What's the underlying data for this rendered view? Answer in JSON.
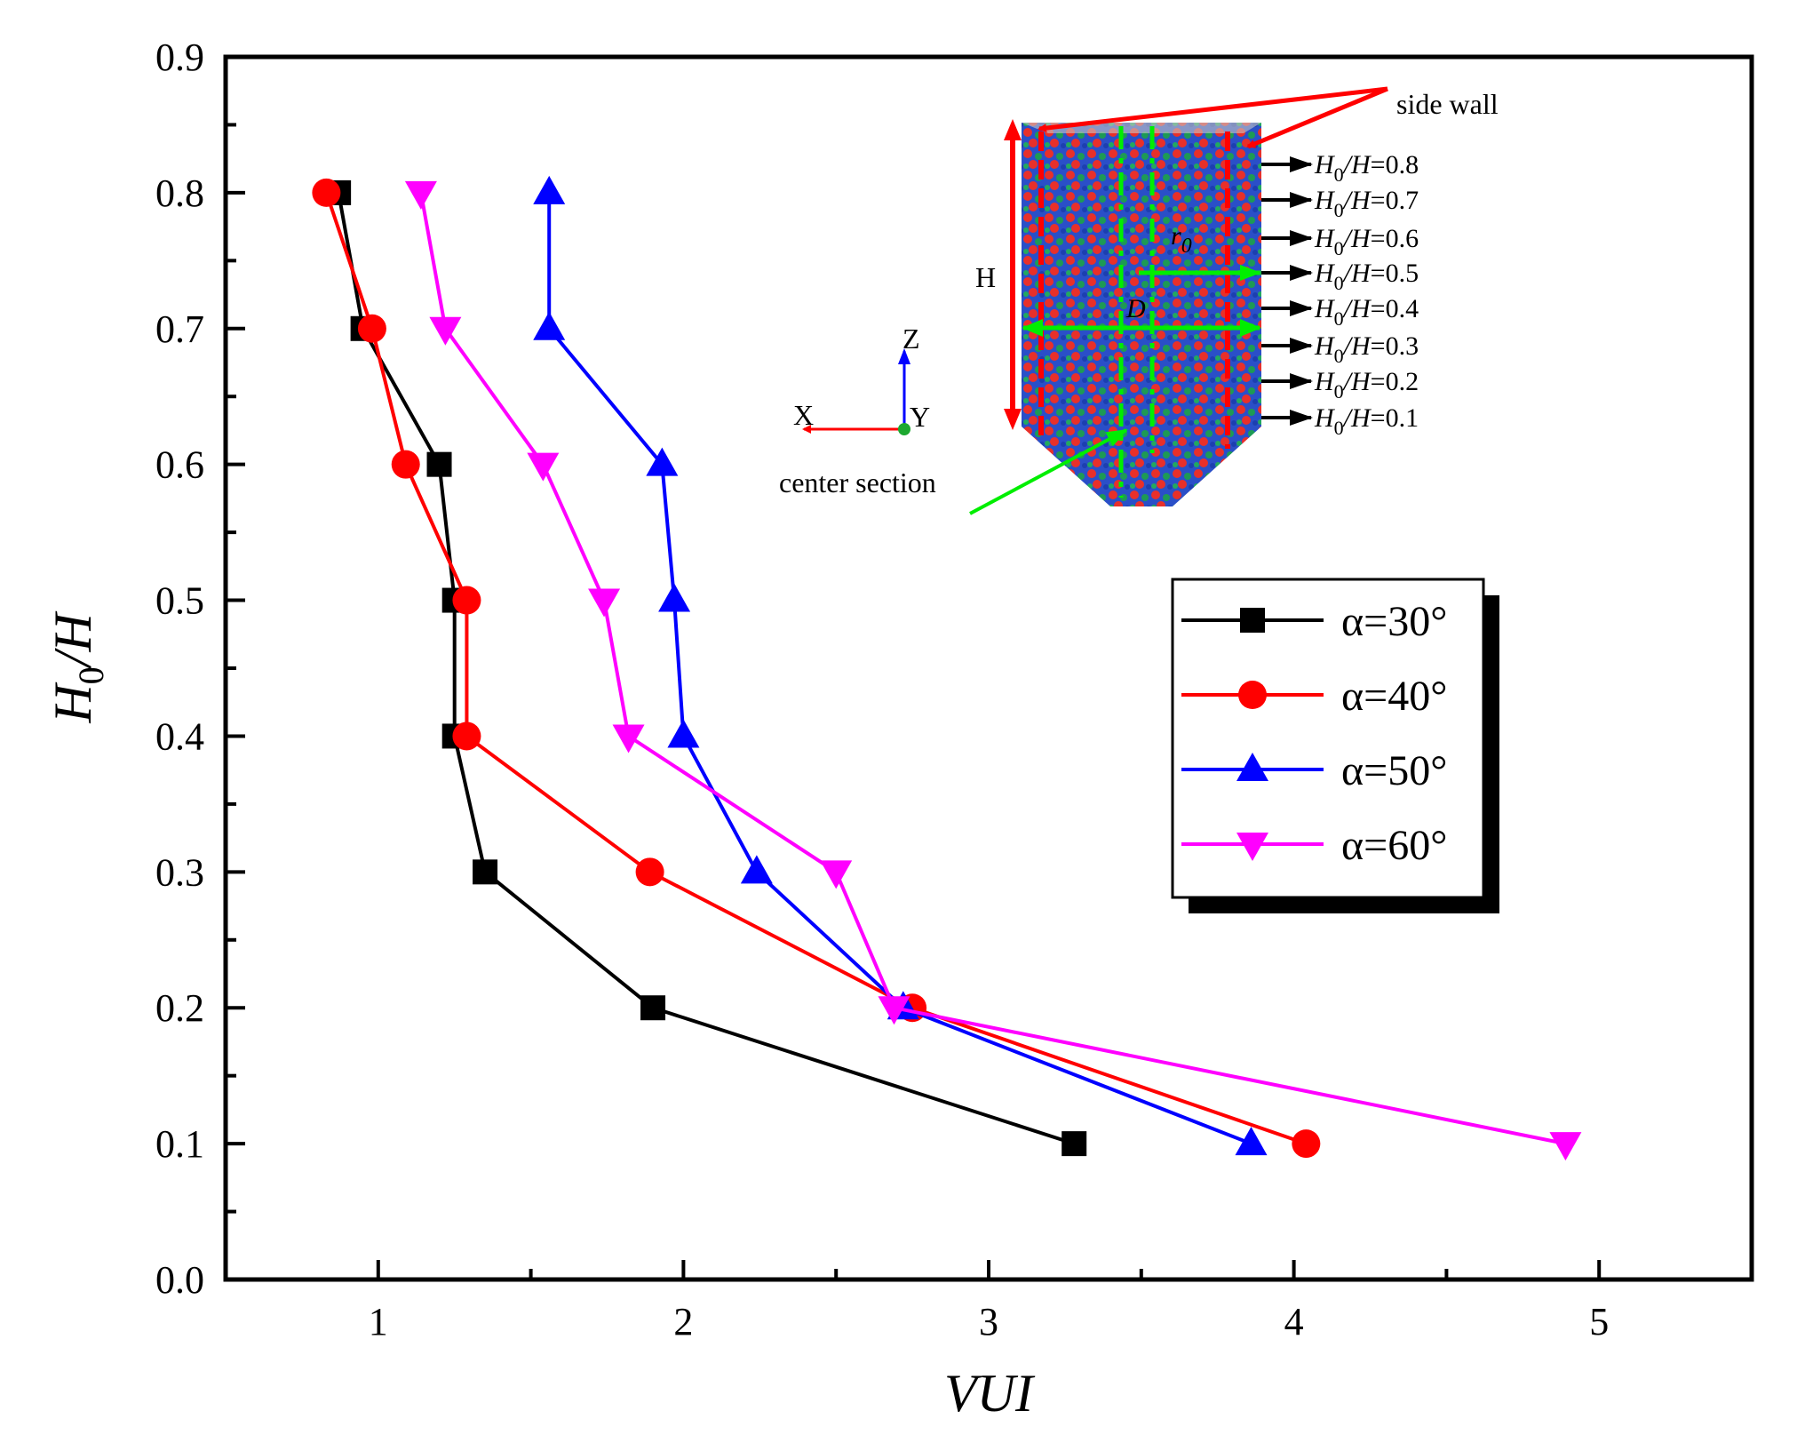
{
  "chart_data": {
    "type": "line",
    "title": "",
    "xlabel": "VUI",
    "ylabel": "H0/H",
    "ylabel_main": "H",
    "ylabel_sub": "0",
    "ylabel_tail": "/H",
    "xlim": [
      0.5,
      5.5
    ],
    "ylim": [
      0.0,
      0.9
    ],
    "xticks": [
      "1",
      "2",
      "3",
      "4",
      "5"
    ],
    "xtick_values": [
      1,
      2,
      3,
      4,
      5
    ],
    "yticks": [
      "0.0",
      "0.1",
      "0.2",
      "0.3",
      "0.4",
      "0.5",
      "0.6",
      "0.7",
      "0.8",
      "0.9"
    ],
    "ytick_values": [
      0.0,
      0.1,
      0.2,
      0.3,
      0.4,
      0.5,
      0.6,
      0.7,
      0.8,
      0.9
    ],
    "legend_position": "right-middle",
    "series": [
      {
        "name": "α=30°",
        "color": "#000000",
        "marker": "square",
        "points": [
          [
            0.87,
            0.8
          ],
          [
            0.95,
            0.7
          ],
          [
            1.2,
            0.6
          ],
          [
            1.25,
            0.5
          ],
          [
            1.25,
            0.4
          ],
          [
            1.35,
            0.3
          ],
          [
            1.9,
            0.2
          ],
          [
            3.28,
            0.1
          ]
        ]
      },
      {
        "name": "α=40°",
        "color": "#ff0000",
        "marker": "circle",
        "points": [
          [
            0.83,
            0.8
          ],
          [
            0.98,
            0.7
          ],
          [
            1.09,
            0.6
          ],
          [
            1.29,
            0.5
          ],
          [
            1.29,
            0.4
          ],
          [
            1.89,
            0.3
          ],
          [
            2.75,
            0.2
          ],
          [
            4.04,
            0.1
          ]
        ]
      },
      {
        "name": "α=50°",
        "color": "#0000ff",
        "marker": "triangle-up",
        "points": [
          [
            1.56,
            0.8
          ],
          [
            1.56,
            0.7
          ],
          [
            1.93,
            0.6
          ],
          [
            1.97,
            0.5
          ],
          [
            2.0,
            0.4
          ],
          [
            2.24,
            0.3
          ],
          [
            2.72,
            0.2
          ],
          [
            3.86,
            0.1
          ]
        ]
      },
      {
        "name": "α=60°",
        "color": "#ff00ff",
        "marker": "triangle-down",
        "points": [
          [
            1.14,
            0.8
          ],
          [
            1.22,
            0.7
          ],
          [
            1.54,
            0.6
          ],
          [
            1.74,
            0.5
          ],
          [
            1.82,
            0.4
          ],
          [
            2.5,
            0.3
          ],
          [
            2.69,
            0.2
          ],
          [
            4.89,
            0.1
          ]
        ]
      }
    ],
    "inset": {
      "side_wall_label": "side wall",
      "center_section_label": "center section",
      "height_label": "H",
      "diameter_label": "D",
      "radius_label": "r0",
      "axis_labels": {
        "x": "X",
        "y": "Y",
        "z": "Z"
      },
      "level_labels": [
        "H0/H=0.8",
        "H0/H=0.7",
        "H0/H=0.6",
        "H0/H=0.5",
        "H0/H=0.4",
        "H0/H=0.3",
        "H0/H=0.2",
        "H0/H=0.1"
      ]
    },
    "colors": {
      "axis": "#000000",
      "wall_arrow": "#ff0000",
      "center_arrow": "#00ff00",
      "level_arrow": "#000000"
    }
  }
}
